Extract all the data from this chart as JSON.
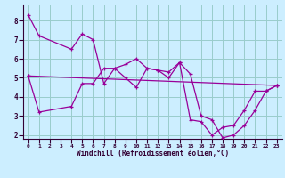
{
  "title": "",
  "xlabel": "Windchill (Refroidissement éolien,°C)",
  "background_color": "#cceeff",
  "grid_color": "#99cccc",
  "line_color": "#990099",
  "xlim": [
    -0.5,
    23.5
  ],
  "ylim": [
    1.8,
    8.8
  ],
  "yticks": [
    2,
    3,
    4,
    5,
    6,
    7,
    8
  ],
  "xticks": [
    0,
    1,
    2,
    3,
    4,
    5,
    6,
    7,
    8,
    9,
    10,
    11,
    12,
    13,
    14,
    15,
    16,
    17,
    18,
    19,
    20,
    21,
    22,
    23
  ],
  "series1_x": [
    0,
    1,
    4,
    5,
    6,
    7,
    8,
    9,
    10,
    11,
    12,
    13,
    14,
    15,
    16,
    17,
    18,
    19,
    20,
    21,
    22,
    23
  ],
  "series1_y": [
    8.3,
    7.2,
    6.5,
    7.3,
    7.0,
    4.7,
    5.5,
    5.7,
    6.0,
    5.5,
    5.4,
    5.3,
    5.8,
    5.2,
    3.0,
    2.8,
    1.85,
    2.0,
    2.5,
    3.3,
    4.3,
    4.6
  ],
  "series2_x": [
    0,
    23
  ],
  "series2_y": [
    5.1,
    4.6
  ],
  "series3_x": [
    0,
    1,
    4,
    5,
    6,
    7,
    8,
    9,
    10,
    11,
    12,
    13,
    14,
    15,
    16,
    17,
    18,
    19,
    20,
    21,
    22,
    23
  ],
  "series3_y": [
    5.1,
    3.2,
    3.5,
    4.7,
    4.7,
    5.5,
    5.5,
    5.0,
    4.5,
    5.5,
    5.4,
    5.0,
    5.8,
    2.8,
    2.7,
    2.0,
    2.4,
    2.5,
    3.3,
    4.3,
    4.3,
    4.6
  ]
}
